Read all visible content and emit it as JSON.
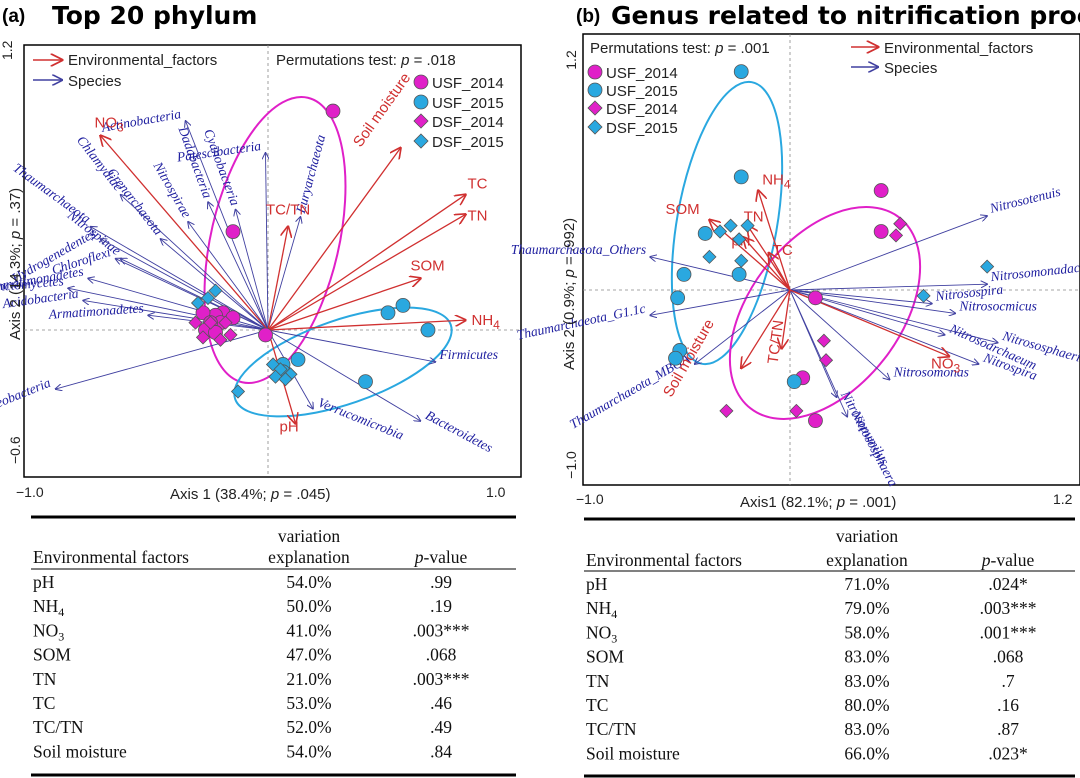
{
  "panels": [
    {
      "letter": "(a)",
      "title": "Top 20 phylum",
      "permutations": {
        "prefix": "Permutations test: ",
        "p": "p",
        "value": " = .018"
      },
      "legend_arrows": [
        {
          "label": "Environmental_factors",
          "color": "#d03030"
        },
        {
          "label": "Species",
          "color": "#4040a0"
        }
      ],
      "legend_groups": [
        "USF_2014",
        "USF_2015",
        "DSF_2014",
        "DSF_2015"
      ],
      "xlabel": {
        "pre": "Axis 1  (38.4%; ",
        "p": "p",
        "post": " = .045)"
      },
      "ylabel": {
        "pre": "Axis 2  (14.3%; ",
        "p": "p",
        "post": " = .37)"
      },
      "xticks": [
        "−1.0",
        "1.0"
      ],
      "yticks": [
        "1.2",
        "−0.6"
      ],
      "table": {
        "header1": "variation",
        "header2": "explanation",
        "col1": "Environmental factors",
        "pval": "-value",
        "p": "p",
        "rows": [
          {
            "name": "pH",
            "sub": "",
            "var": "54.0%",
            "p": ".99"
          },
          {
            "name": "NH",
            "sub": "4",
            "var": "50.0%",
            "p": ".19"
          },
          {
            "name": "NO",
            "sub": "3",
            "var": "41.0%",
            "p": ".003***"
          },
          {
            "name": "SOM",
            "sub": "",
            "var": "47.0%",
            "p": ".068"
          },
          {
            "name": "TN",
            "sub": "",
            "var": "21.0%",
            "p": ".003***"
          },
          {
            "name": "TC",
            "sub": "",
            "var": "53.0%",
            "p": ".46"
          },
          {
            "name": "TC/TN",
            "sub": "",
            "var": "52.0%",
            "p": ".49"
          },
          {
            "name": "Soil moisture",
            "sub": "",
            "var": "54.0%",
            "p": ".84"
          }
        ]
      }
    },
    {
      "letter": "(b)",
      "title": "Genus related to nitrification process",
      "permutations": {
        "prefix": "Permutations test: ",
        "p": "p",
        "value": " = .001"
      },
      "legend_arrows": [
        {
          "label": "Environmental_factors",
          "color": "#d03030"
        },
        {
          "label": "Species",
          "color": "#4040a0"
        }
      ],
      "legend_groups": [
        "USF_2014",
        "USF_2015",
        "DSF_2014",
        "DSF_2015"
      ],
      "xlabel": {
        "pre": "Axis1  (82.1%; ",
        "p": "p",
        "post": " = .001)"
      },
      "ylabel": {
        "pre": "Axis 2 (0.9%; ",
        "p": "p",
        "post": " = .992)"
      },
      "xticks": [
        "−1.0",
        "1.2"
      ],
      "yticks": [
        "1.2",
        "−1.0"
      ],
      "table": {
        "header1": "variation",
        "header2": "explanation",
        "col1": "Environmental factors",
        "pval": "-value",
        "p": "p",
        "rows": [
          {
            "name": "pH",
            "sub": "",
            "var": "71.0%",
            "p": ".024*"
          },
          {
            "name": "NH",
            "sub": "4",
            "var": "79.0%",
            "p": ".003***"
          },
          {
            "name": "NO",
            "sub": "3",
            "var": "58.0%",
            "p": ".001***"
          },
          {
            "name": "SOM",
            "sub": "",
            "var": "83.0%",
            "p": ".068"
          },
          {
            "name": "TN",
            "sub": "",
            "var": "83.0%",
            "p": ".7"
          },
          {
            "name": "TC",
            "sub": "",
            "var": "80.0%",
            "p": ".16"
          },
          {
            "name": "TC/TN",
            "sub": "",
            "var": "83.0%",
            "p": ".87"
          },
          {
            "name": "Soil moisture",
            "sub": "",
            "var": "66.0%",
            "p": ".023*"
          }
        ]
      }
    }
  ],
  "colors": {
    "magenta": "#e020c8",
    "cyan": "#2aa8e0",
    "red": "#d03030",
    "blue": "#4040a0",
    "bluetext": "#2020a0"
  },
  "chart_data": [
    {
      "type": "scatter",
      "title": "Top 20 phylum",
      "xlabel": "Axis 1  (38.4%; p = .045)",
      "ylabel": "Axis 2  (14.3%; p = .37)",
      "xlim": [
        -1.0,
        1.0
      ],
      "ylim": [
        -0.6,
        1.2
      ],
      "env_arrows": [
        {
          "label": "NO3",
          "x": -0.67,
          "y": 0.79
        },
        {
          "label": "TC/TN",
          "x": 0.08,
          "y": 0.42
        },
        {
          "label": "Soil moisture",
          "x": 0.53,
          "y": 0.74
        },
        {
          "label": "TC",
          "x": 0.79,
          "y": 0.55
        },
        {
          "label": "TN",
          "x": 0.79,
          "y": 0.47
        },
        {
          "label": "SOM",
          "x": 0.61,
          "y": 0.21
        },
        {
          "label": "NH4",
          "x": 0.79,
          "y": 0.04
        },
        {
          "label": "pH",
          "x": 0.11,
          "y": -0.38
        }
      ],
      "species_arrows": [
        {
          "label": "Actinobacteria",
          "x": -0.33,
          "y": 0.85
        },
        {
          "label": "Cyanobacteria",
          "x": -0.13,
          "y": 0.49
        },
        {
          "label": "Patescibacteria",
          "x": -0.01,
          "y": 0.72
        },
        {
          "label": "Dadabacteria",
          "x": -0.24,
          "y": 0.52
        },
        {
          "label": "Nitrospirae",
          "x": -0.32,
          "y": 0.44
        },
        {
          "label": "Crenarchaeota",
          "x": -0.43,
          "y": 0.37
        },
        {
          "label": "Nitrospinae",
          "x": -0.59,
          "y": 0.29
        },
        {
          "label": "Chlamydiae",
          "x": -0.59,
          "y": 0.55
        },
        {
          "label": "Thaumarchaeota",
          "x": -0.71,
          "y": 0.42
        },
        {
          "label": "Hydrogenedentes",
          "x": -0.67,
          "y": 0.37
        },
        {
          "label": "Chloroflexi",
          "x": -0.61,
          "y": 0.29
        },
        {
          "label": "Gemmatimonadetes",
          "x": -0.72,
          "y": 0.21
        },
        {
          "label": "Planctomycetes",
          "x": -0.8,
          "y": 0.17
        },
        {
          "label": "Acidobacteria",
          "x": -0.74,
          "y": 0.12
        },
        {
          "label": "Armatimonadetes",
          "x": -0.48,
          "y": 0.06
        },
        {
          "label": "Euryarchaeota",
          "x": 0.13,
          "y": 0.46
        },
        {
          "label": "Proteobacteria",
          "x": -0.85,
          "y": -0.24
        },
        {
          "label": "Firmicutes",
          "x": 0.67,
          "y": -0.13
        },
        {
          "label": "Bacteroidetes",
          "x": 0.61,
          "y": -0.37
        },
        {
          "label": "Verrucomicrobia",
          "x": 0.18,
          "y": -0.32
        }
      ],
      "series": [
        {
          "name": "USF_2014",
          "points": [
            [
              0.26,
              0.89
            ],
            [
              -0.14,
              0.4
            ],
            [
              -0.18,
              0.07
            ],
            [
              -0.21,
              0.06
            ],
            [
              -0.26,
              0.07
            ],
            [
              -0.14,
              0.05
            ],
            [
              -0.19,
              0.03
            ],
            [
              -0.23,
              0.03
            ],
            [
              -0.25,
              0.0
            ],
            [
              -0.21,
              -0.01
            ],
            [
              -0.01,
              -0.02
            ]
          ]
        },
        {
          "name": "USF_2015",
          "points": [
            [
              0.54,
              0.1
            ],
            [
              0.48,
              0.07
            ],
            [
              0.64,
              0.0
            ],
            [
              0.12,
              -0.12
            ],
            [
              0.06,
              -0.14
            ],
            [
              0.06,
              -0.17
            ],
            [
              0.39,
              -0.21
            ]
          ]
        },
        {
          "name": "DSF_2014",
          "points": [
            [
              -0.29,
              0.03
            ],
            [
              -0.23,
              0.03
            ],
            [
              -0.17,
              0.03
            ],
            [
              -0.26,
              -0.03
            ],
            [
              -0.19,
              -0.04
            ],
            [
              -0.15,
              -0.02
            ]
          ]
        },
        {
          "name": "DSF_2015",
          "points": [
            [
              -0.21,
              0.16
            ],
            [
              -0.24,
              0.13
            ],
            [
              -0.28,
              0.11
            ],
            [
              0.02,
              -0.14
            ],
            [
              0.05,
              -0.16
            ],
            [
              0.09,
              -0.18
            ],
            [
              0.03,
              -0.19
            ],
            [
              0.07,
              -0.2
            ],
            [
              -0.12,
              -0.25
            ]
          ]
        }
      ]
    },
    {
      "type": "scatter",
      "title": "Genus related to nitrification process",
      "xlabel": "Axis1  (82.1%; p = .001)",
      "ylabel": "Axis 2 (0.9%; p = .992)",
      "xlim": [
        -1.0,
        1.2
      ],
      "ylim": [
        -1.0,
        1.2
      ],
      "env_arrows": [
        {
          "label": "NH4",
          "x": -0.15,
          "y": 0.51
        },
        {
          "label": "SOM",
          "x": -0.38,
          "y": 0.36
        },
        {
          "label": "TN",
          "x": -0.2,
          "y": 0.33
        },
        {
          "label": "pH",
          "x": -0.22,
          "y": 0.27
        },
        {
          "label": "TC",
          "x": -0.1,
          "y": 0.19
        },
        {
          "label": "TC/TN",
          "x": -0.04,
          "y": -0.3
        },
        {
          "label": "NO3",
          "x": 0.75,
          "y": -0.34
        },
        {
          "label": "Soil moisture",
          "x": -0.23,
          "y": -0.4
        }
      ],
      "species_arrows": [
        {
          "label": "Nitrosotenuis",
          "x": 0.93,
          "y": 0.38
        },
        {
          "label": "Thaumarchaeota_Others",
          "x": -0.66,
          "y": 0.17
        },
        {
          "label": "Nitrosomonadaceae_Others",
          "x": 0.93,
          "y": 0.03
        },
        {
          "label": "Thaumarchaeota_G1.1c",
          "x": -0.66,
          "y": -0.13
        },
        {
          "label": "Nitrosospira",
          "x": 0.67,
          "y": -0.07
        },
        {
          "label": "Nitrosocmicus",
          "x": 0.78,
          "y": -0.12
        },
        {
          "label": "Nitrososphaeria_others",
          "x": 0.98,
          "y": -0.27
        },
        {
          "label": "Nitrosoarchaeum",
          "x": 0.73,
          "y": -0.23
        },
        {
          "label": "Nitrospira",
          "x": 0.89,
          "y": -0.38
        },
        {
          "label": "Nitrosopumilus",
          "x": 0.22,
          "y": -0.55
        },
        {
          "label": "Nitrosomonas",
          "x": 0.47,
          "y": -0.46
        },
        {
          "label": "Thaumarchaeota_MBGA",
          "x": -0.45,
          "y": -0.38
        },
        {
          "label": "Nitrososphaera",
          "x": 0.27,
          "y": -0.65
        }
      ],
      "series": [
        {
          "name": "USF_2014",
          "points": [
            [
              0.43,
              0.51
            ],
            [
              0.43,
              0.3
            ],
            [
              0.12,
              -0.04
            ],
            [
              0.06,
              -0.45
            ],
            [
              0.12,
              -0.67
            ]
          ]
        },
        {
          "name": "USF_2015",
          "points": [
            [
              -0.23,
              1.12
            ],
            [
              -0.23,
              0.58
            ],
            [
              -0.4,
              0.29
            ],
            [
              -0.5,
              0.08
            ],
            [
              -0.53,
              -0.04
            ],
            [
              -0.52,
              -0.31
            ],
            [
              -0.54,
              -0.35
            ],
            [
              -0.24,
              0.08
            ],
            [
              0.02,
              -0.47
            ]
          ]
        },
        {
          "name": "DSF_2014",
          "points": [
            [
              0.52,
              0.34
            ],
            [
              0.5,
              0.28
            ],
            [
              0.16,
              -0.26
            ],
            [
              0.17,
              -0.36
            ],
            [
              -0.3,
              -0.62
            ],
            [
              0.03,
              -0.62
            ]
          ]
        },
        {
          "name": "DSF_2015",
          "points": [
            [
              -0.33,
              0.3
            ],
            [
              -0.28,
              0.33
            ],
            [
              -0.24,
              0.26
            ],
            [
              -0.2,
              0.33
            ],
            [
              -0.38,
              0.17
            ],
            [
              -0.23,
              0.15
            ],
            [
              0.93,
              0.12
            ],
            [
              0.63,
              -0.03
            ]
          ]
        }
      ]
    }
  ]
}
